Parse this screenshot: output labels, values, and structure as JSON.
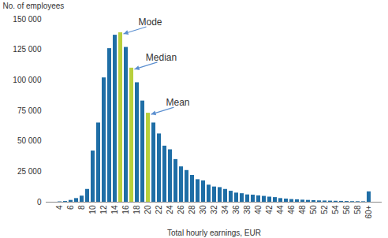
{
  "chart_data": {
    "type": "bar",
    "y_label": "No. of employees",
    "x_label": "Total hourly earnings, EUR",
    "categories": [
      "4",
      null,
      "6",
      null,
      "8",
      null,
      "10",
      null,
      "12",
      null,
      "14",
      null,
      "16",
      null,
      "18",
      null,
      "20",
      null,
      "22",
      null,
      "24",
      null,
      "26",
      null,
      "28",
      null,
      "30",
      null,
      "32",
      null,
      "34",
      null,
      "36",
      null,
      "38",
      null,
      "40",
      null,
      "42",
      null,
      "44",
      null,
      "46",
      null,
      "48",
      null,
      "50",
      null,
      "52",
      null,
      "54",
      null,
      "56",
      null,
      "58",
      null,
      "60+"
    ],
    "values": [
      300,
      600,
      1500,
      3000,
      5000,
      10500,
      42000,
      65000,
      102000,
      126000,
      137000,
      139000,
      127000,
      110000,
      98000,
      83000,
      73000,
      65000,
      56000,
      46000,
      43000,
      35000,
      29000,
      26000,
      22000,
      18500,
      17500,
      14000,
      12500,
      12000,
      10500,
      9000,
      7500,
      7000,
      6000,
      5800,
      5200,
      4800,
      4200,
      3800,
      3000,
      2600,
      2200,
      2000,
      1700,
      1500,
      1300,
      1100,
      1000,
      900,
      800,
      700,
      600,
      500,
      450,
      400,
      8500
    ],
    "colors": [
      "#1f6ea6",
      "#1f6ea6",
      "#1f6ea6",
      "#1f6ea6",
      "#1f6ea6",
      "#1f6ea6",
      "#1f6ea6",
      "#1f6ea6",
      "#1f6ea6",
      "#1f6ea6",
      "#1f6ea6",
      "#b8cf3c",
      "#1f6ea6",
      "#b8cf3c",
      "#1f6ea6",
      "#1f6ea6",
      "#b8cf3c",
      "#1f6ea6",
      "#1f6ea6",
      "#1f6ea6",
      "#1f6ea6",
      "#1f6ea6",
      "#1f6ea6",
      "#1f6ea6",
      "#1f6ea6",
      "#1f6ea6",
      "#1f6ea6",
      "#1f6ea6",
      "#1f6ea6",
      "#1f6ea6",
      "#1f6ea6",
      "#1f6ea6",
      "#1f6ea6",
      "#1f6ea6",
      "#1f6ea6",
      "#1f6ea6",
      "#1f6ea6",
      "#1f6ea6",
      "#1f6ea6",
      "#1f6ea6",
      "#1f6ea6",
      "#1f6ea6",
      "#1f6ea6",
      "#1f6ea6",
      "#1f6ea6",
      "#1f6ea6",
      "#1f6ea6",
      "#1f6ea6",
      "#1f6ea6",
      "#1f6ea6",
      "#1f6ea6",
      "#1f6ea6",
      "#1f6ea6",
      "#1f6ea6",
      "#1f6ea6",
      "#1f6ea6",
      "#1f6ea6"
    ],
    "ylim": [
      0,
      150000
    ],
    "yticks": [
      0,
      {
        "value": 25000,
        "label": "25 000"
      },
      {
        "value": 50000,
        "label": "50 000"
      },
      {
        "value": 75000,
        "label": "75 000"
      },
      {
        "value": 100000,
        "label": "100 000"
      },
      {
        "value": 125000,
        "label": "125 000"
      },
      {
        "value": 150000,
        "label": "150 000"
      }
    ],
    "annotations": [
      "Mode",
      "Median",
      "Mean"
    ]
  }
}
